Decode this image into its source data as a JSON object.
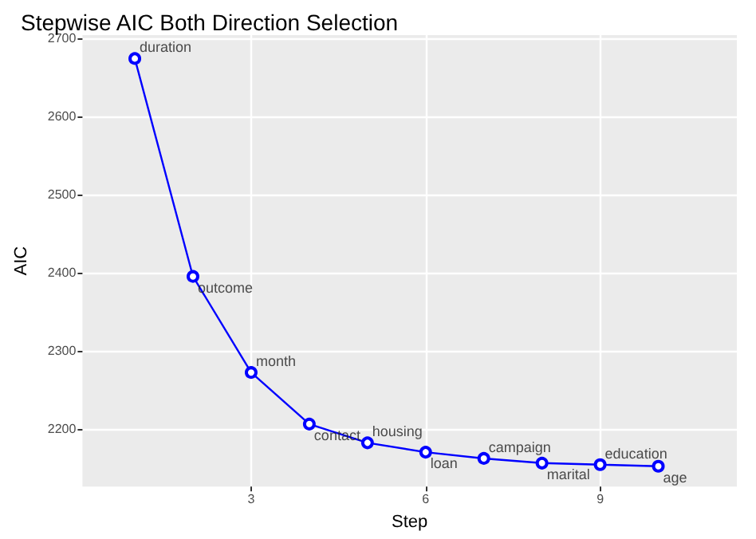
{
  "chart_data": {
    "type": "line",
    "title": "Stepwise AIC Both Direction Selection",
    "xlabel": "Step",
    "ylabel": "AIC",
    "x": [
      1,
      2,
      3,
      4,
      5,
      6,
      7,
      8,
      9,
      10
    ],
    "series": [
      {
        "color": "#0000ff",
        "values": [
          2674,
          2395,
          2272,
          2206,
          2182,
          2170,
          2162,
          2156,
          2154,
          2152
        ]
      }
    ],
    "annotations": [
      {
        "text": "duration",
        "x": 1,
        "y": 2674
      },
      {
        "text": "outcome",
        "x": 2,
        "y": 2395
      },
      {
        "text": "month",
        "x": 3,
        "y": 2272
      },
      {
        "text": "contact",
        "x": 4,
        "y": 2206
      },
      {
        "text": "housing",
        "x": 5,
        "y": 2182
      },
      {
        "text": "loan",
        "x": 6,
        "y": 2170
      },
      {
        "text": "campaign",
        "x": 7,
        "y": 2162
      },
      {
        "text": "marital",
        "x": 8,
        "y": 2156
      },
      {
        "text": "education",
        "x": 9,
        "y": 2154
      },
      {
        "text": "age",
        "x": 10,
        "y": 2152
      }
    ],
    "xlim": [
      0.1,
      11.35
    ],
    "ylim": [
      2126,
      2704
    ],
    "xticks": [
      3,
      6,
      9
    ],
    "yticks": [
      2200,
      2300,
      2400,
      2500,
      2600,
      2700
    ],
    "grid": true,
    "marker": "circle",
    "line_style": "solid"
  }
}
